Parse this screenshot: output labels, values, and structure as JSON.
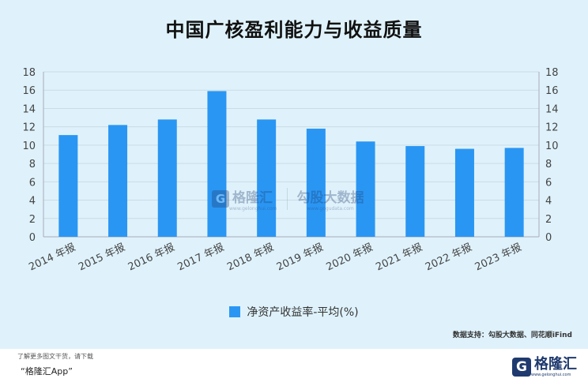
{
  "title": "中国广核盈利能力与收益质量",
  "source": "数据支持：勾股大数据、同花顺iFind",
  "footer": {
    "line1": "了解更多图文干货，请下载",
    "line2": "“格隆汇App”",
    "logo_text": "格隆汇",
    "logo_letter": "G",
    "logo_url": "www.gelonghui.com"
  },
  "watermark": {
    "letter": "G",
    "brand": "格隆汇",
    "brand_url": "www.gelonghui.com",
    "partner": "勾股大数据",
    "partner_url": "www.gogudata.com"
  },
  "colors": {
    "bar": "#2a96f3",
    "background": "#dff2fb",
    "grid": "#c9dbe6"
  },
  "chart_data": {
    "type": "bar",
    "categories": [
      "2014 年报",
      "2015 年报",
      "2016 年报",
      "2017 年报",
      "2018 年报",
      "2019 年报",
      "2020 年报",
      "2021 年报",
      "2022 年报",
      "2023 年报"
    ],
    "series": [
      {
        "name": "净资产收益率-平均(%)",
        "values": [
          11.1,
          12.2,
          12.8,
          15.9,
          12.8,
          11.8,
          10.4,
          9.9,
          9.6,
          9.7
        ]
      }
    ],
    "ylim": [
      0,
      18
    ],
    "yticks": [
      0,
      2,
      4,
      6,
      8,
      10,
      12,
      14,
      16,
      18
    ],
    "secondary_axis_right": true,
    "grid": true,
    "legend_position": "bottom"
  }
}
